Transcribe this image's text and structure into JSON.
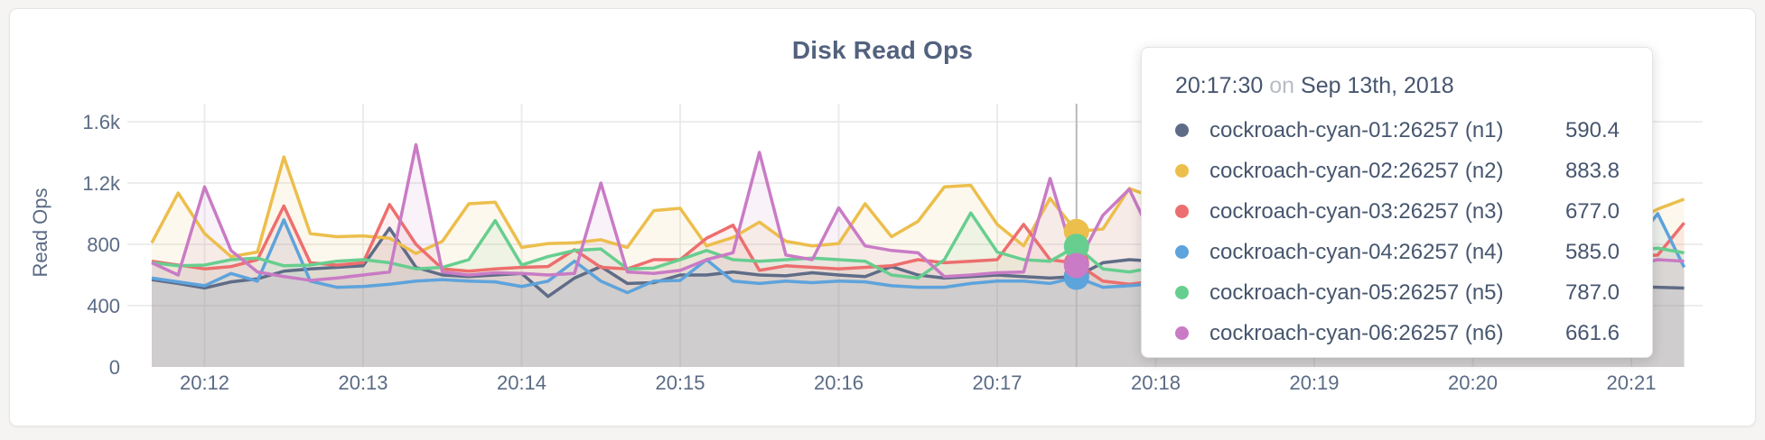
{
  "card": {
    "title": "Disk Read Ops"
  },
  "chart_data": {
    "type": "line",
    "title": "Disk Read Ops",
    "ylabel": "Read Ops",
    "ylim": [
      0,
      1600
    ],
    "grid": true,
    "y_ticks": [
      {
        "label": "0",
        "value": 0
      },
      {
        "label": "400",
        "value": 400
      },
      {
        "label": "800",
        "value": 800
      },
      {
        "label": "1.2k",
        "value": 1200
      },
      {
        "label": "1.6k",
        "value": 1600
      }
    ],
    "x_ticks": [
      "20:12",
      "20:13",
      "20:14",
      "20:15",
      "20:16",
      "20:17",
      "20:18",
      "20:19",
      "20:20",
      "20:21"
    ],
    "sample_interval_seconds": 10,
    "first_tick_offset_seconds": 20,
    "tick_interval_seconds": 60,
    "series": [
      {
        "name": "cockroach-cyan-01:26257 (n1)",
        "color": "#5F6C87",
        "values": [
          570,
          545,
          515,
          555,
          575,
          625,
          640,
          650,
          660,
          905,
          650,
          600,
          590,
          600,
          610,
          460,
          580,
          655,
          545,
          550,
          600,
          600,
          620,
          600,
          595,
          615,
          600,
          590,
          655,
          600,
          580,
          590,
          600,
          590,
          580,
          590.4,
          680,
          700,
          690,
          650,
          620,
          600,
          610,
          625,
          600,
          590,
          605,
          615,
          595,
          580,
          600,
          610,
          590,
          570,
          555,
          540,
          525,
          520,
          515
        ]
      },
      {
        "name": "cockroach-cyan-02:26257 (n2)",
        "color": "#ECBE4C",
        "values": [
          810,
          1135,
          870,
          720,
          750,
          1370,
          870,
          850,
          855,
          840,
          740,
          820,
          1065,
          1075,
          780,
          805,
          810,
          830,
          780,
          1020,
          1035,
          790,
          845,
          945,
          820,
          790,
          805,
          1065,
          850,
          950,
          1175,
          1185,
          930,
          790,
          1100,
          883.8,
          900,
          1165,
          1100,
          950,
          870,
          900,
          820,
          860,
          910,
          840,
          800,
          830,
          870,
          820,
          790,
          850,
          880,
          840,
          800,
          900,
          940,
          1030,
          1095
        ]
      },
      {
        "name": "cockroach-cyan-03:26257 (n3)",
        "color": "#ED6E6E",
        "values": [
          690,
          665,
          640,
          655,
          700,
          1050,
          680,
          665,
          680,
          1060,
          800,
          640,
          625,
          640,
          650,
          655,
          765,
          650,
          640,
          700,
          700,
          840,
          925,
          630,
          660,
          650,
          640,
          650,
          660,
          700,
          680,
          690,
          700,
          930,
          700,
          677,
          560,
          540,
          560,
          600,
          640,
          660,
          630,
          650,
          680,
          660,
          640,
          655,
          670,
          640,
          620,
          650,
          640,
          660,
          680,
          700,
          720,
          730,
          940
        ]
      },
      {
        "name": "cockroach-cyan-04:26257 (n4)",
        "color": "#5DA3DC",
        "values": [
          580,
          555,
          530,
          610,
          560,
          960,
          560,
          520,
          525,
          540,
          560,
          570,
          560,
          555,
          525,
          560,
          690,
          560,
          485,
          560,
          565,
          700,
          560,
          545,
          560,
          550,
          560,
          555,
          530,
          520,
          520,
          545,
          560,
          560,
          545,
          585,
          520,
          530,
          545,
          550,
          560,
          540,
          555,
          565,
          540,
          530,
          550,
          560,
          545,
          535,
          550,
          560,
          545,
          555,
          570,
          620,
          780,
          1000,
          650
        ]
      },
      {
        "name": "cockroach-cyan-05:26257 (n5)",
        "color": "#67CE8F",
        "values": [
          680,
          660,
          665,
          700,
          710,
          660,
          665,
          690,
          700,
          680,
          640,
          650,
          700,
          955,
          665,
          720,
          760,
          770,
          640,
          645,
          700,
          760,
          700,
          690,
          700,
          710,
          700,
          690,
          600,
          580,
          700,
          1005,
          750,
          700,
          690,
          787,
          640,
          620,
          650,
          700,
          720,
          690,
          670,
          700,
          730,
          690,
          660,
          680,
          700,
          690,
          670,
          700,
          720,
          700,
          680,
          700,
          760,
          775,
          745
        ]
      },
      {
        "name": "cockroach-cyan-06:26257 (n6)",
        "color": "#C97BC5",
        "values": [
          680,
          600,
          1175,
          760,
          620,
          590,
          565,
          580,
          600,
          620,
          1450,
          620,
          600,
          615,
          610,
          600,
          610,
          1200,
          620,
          610,
          630,
          700,
          745,
          1400,
          730,
          700,
          1038,
          790,
          760,
          745,
          590,
          600,
          615,
          620,
          1230,
          661.6,
          990,
          1160,
          800,
          700,
          650,
          700,
          680,
          640,
          660,
          700,
          720,
          680,
          660,
          640,
          660,
          680,
          700,
          680,
          660,
          640,
          660,
          700,
          690
        ]
      }
    ]
  },
  "tooltip": {
    "time": "20:17:30",
    "connector": "on",
    "date": "Sep 13th, 2018",
    "hover_sample_index": 35,
    "rows": [
      {
        "label": "cockroach-cyan-01:26257 (n1)",
        "value": "590.4",
        "color": "#5F6C87"
      },
      {
        "label": "cockroach-cyan-02:26257 (n2)",
        "value": "883.8",
        "color": "#ECBE4C"
      },
      {
        "label": "cockroach-cyan-03:26257 (n3)",
        "value": "677.0",
        "color": "#ED6E6E"
      },
      {
        "label": "cockroach-cyan-04:26257 (n4)",
        "value": "585.0",
        "color": "#5DA3DC"
      },
      {
        "label": "cockroach-cyan-05:26257 (n5)",
        "value": "787.0",
        "color": "#67CE8F"
      },
      {
        "label": "cockroach-cyan-06:26257 (n6)",
        "value": "661.6",
        "color": "#C97BC5"
      }
    ]
  }
}
